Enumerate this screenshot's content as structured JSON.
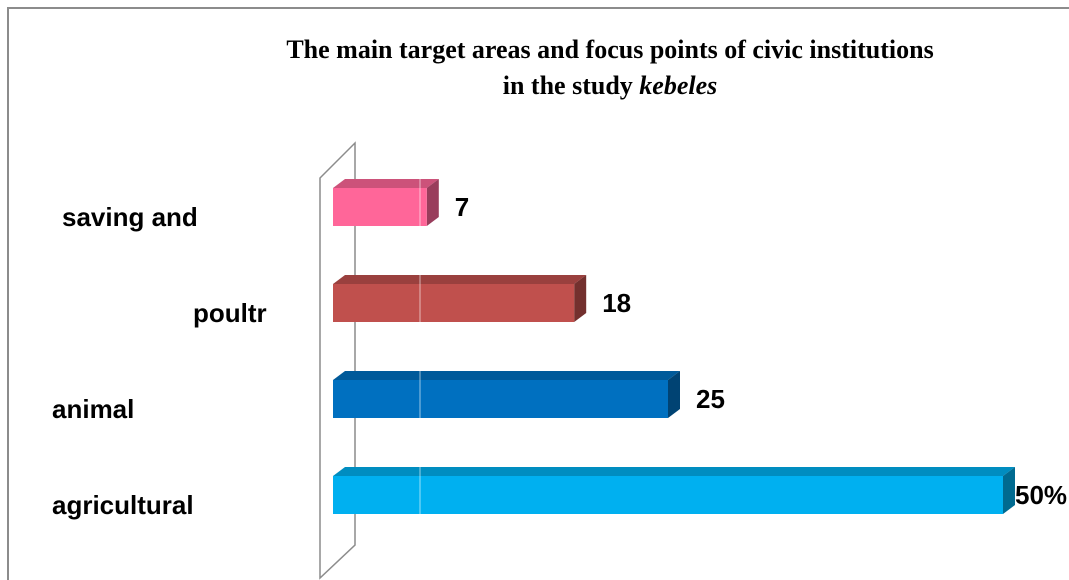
{
  "chart_data": {
    "type": "bar",
    "orientation": "horizontal",
    "title_lines": [
      "The main target areas and focus points of civic institutions",
      "in the study"
    ],
    "title_emphasis": "kebeles",
    "categories": [
      "saving and",
      "poultr",
      "animal",
      "agricultural"
    ],
    "values": [
      7,
      18,
      25,
      50
    ],
    "value_labels": [
      "7",
      "18",
      "25",
      "50%"
    ],
    "colors": [
      "#ff6699",
      "#c0504d",
      "#0070c0",
      "#00b0f0"
    ],
    "xlim": [
      0,
      50
    ]
  }
}
